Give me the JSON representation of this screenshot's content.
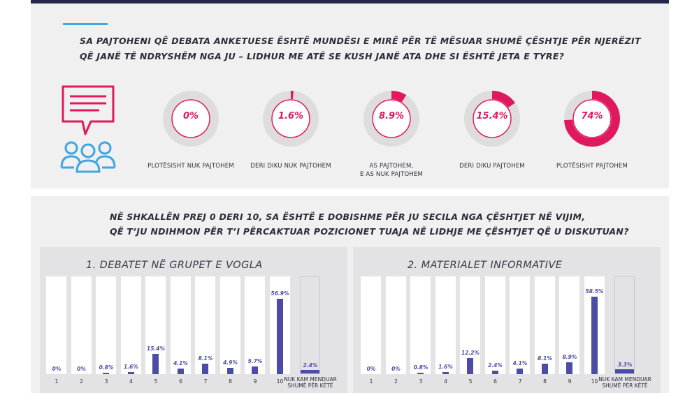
{
  "question1": {
    "line1": "SA PAJTOHENI QË DEBATA ANKETUESE ËSHTË MUNDËSI E MIRË PËR TË MËSUAR SHUMË ÇËSHTJE PËR NJERËZIT",
    "line2": "QË JANË TË NDRYSHËM NGA JU – LIDHUR ME ATË SE KUSH JANË ATA DHE SI ËSHTË JETA E TYRE?"
  },
  "question2": {
    "line1": "NË SHKALLËN PREJ 0 DERI 10, SA ËSHTË E DOBISHME PËR JU SECILA NGA ÇËSHTJET NË VIJIM,",
    "line2": "QË T’JU NDIHMON PËR T’I PËRCAKTUAR POZICIONET TUAJA NË LIDHJE ME ÇËSHTJET QË U DISKUTUAN?"
  },
  "colors": {
    "accent_pink": "#e0185f",
    "bar_blue": "#4c4ca6",
    "donut_track": "#dddddd",
    "header_bar": "#24254a",
    "accent_line": "#3fa6e0",
    "icon_blue": "#3fa6e0"
  },
  "icons": [
    "speech-bubble-icon",
    "people-group-icon"
  ],
  "chart_data": [
    {
      "type": "pie",
      "categories": [
        "PLOTËSISHT NUK PAJTOHEM",
        "DERI DIKU NUK PAJTOHEM",
        "AS PAJTOHEM, E AS NUK PAJTOHEM",
        "DERI DIKU PAJTOHEM",
        "PLOTËSISHT PAJTOHEM"
      ],
      "label_lines": [
        [
          "PLOTËSISHT NUK PAJTOHEM"
        ],
        [
          "DERI DIKU NUK PAJTOHEM"
        ],
        [
          "AS PAJTOHEM,",
          "E AS NUK PAJTOHEM"
        ],
        [
          "DERI DIKU PAJTOHEM"
        ],
        [
          "PLOTËSISHT PAJTOHEM"
        ]
      ],
      "values": [
        0,
        1.6,
        8.9,
        15.4,
        74
      ],
      "value_labels": [
        "0%",
        "1.6%",
        "8.9%",
        "15.4%",
        "74%"
      ]
    },
    {
      "type": "bar",
      "title": "1. DEBATET NË GRUPET E VOGLA",
      "categories": [
        "1",
        "2",
        "3",
        "4",
        "5",
        "6",
        "7",
        "8",
        "9",
        "10",
        "NUK KAM MENDUAR SHUMË PËR KËTË"
      ],
      "category_lines": [
        [
          "1"
        ],
        [
          "2"
        ],
        [
          "3"
        ],
        [
          "4"
        ],
        [
          "5"
        ],
        [
          "6"
        ],
        [
          "7"
        ],
        [
          "8"
        ],
        [
          "9"
        ],
        [
          "10"
        ],
        [
          "NUK KAM MENDUAR",
          "SHUMË PËR KËTË"
        ]
      ],
      "values": [
        0,
        0,
        0.8,
        1.6,
        15.4,
        4.1,
        8.1,
        4.9,
        5.7,
        56.9,
        2.4
      ],
      "value_labels": [
        "0%",
        "0%",
        "0.8%",
        "1.6%",
        "15.4%",
        "4.1%",
        "8.1%",
        "4.9%",
        "5.7%",
        "56.9%",
        "2.4%"
      ],
      "ylim": [
        0,
        100
      ]
    },
    {
      "type": "bar",
      "title": "2. MATERIALET INFORMATIVE",
      "categories": [
        "1",
        "2",
        "3",
        "4",
        "5",
        "6",
        "7",
        "8",
        "9",
        "10",
        "NUK KAM MENDUAR SHUMË PËR KËTË"
      ],
      "category_lines": [
        [
          "1"
        ],
        [
          "2"
        ],
        [
          "3"
        ],
        [
          "4"
        ],
        [
          "5"
        ],
        [
          "6"
        ],
        [
          "7"
        ],
        [
          "8"
        ],
        [
          "9"
        ],
        [
          "10"
        ],
        [
          "NUK KAM MENDUAR",
          "SHUMË PËR KËTË"
        ]
      ],
      "values": [
        0,
        0,
        0.8,
        1.6,
        12.2,
        2.4,
        4.1,
        8.1,
        8.9,
        58.5,
        3.3
      ],
      "value_labels": [
        "0%",
        "0%",
        "0.8%",
        "1.6%",
        "12.2%",
        "2.4%",
        "4.1%",
        "8.1%",
        "8.9%",
        "58.5%",
        "3.3%"
      ],
      "ylim": [
        0,
        100
      ]
    }
  ]
}
